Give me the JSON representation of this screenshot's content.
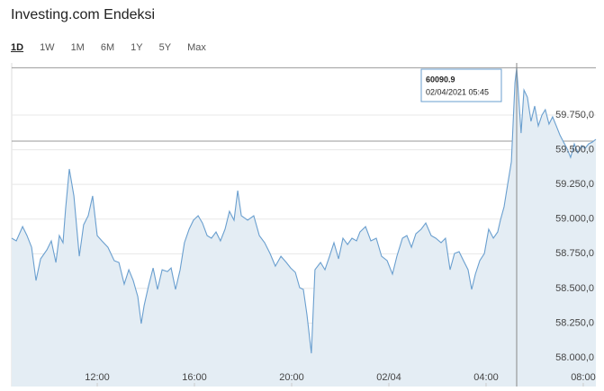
{
  "header": {
    "title": "Investing.com Endeksi",
    "ranges": [
      "1D",
      "1W",
      "1M",
      "6M",
      "1Y",
      "5Y",
      "Max"
    ],
    "active_range": 0
  },
  "chart_data": {
    "type": "area",
    "color": "#6a9fcf",
    "fill": "#e4edf4",
    "x": [
      8.48,
      8.67,
      8.93,
      9.11,
      9.3,
      9.48,
      9.67,
      9.93,
      10.11,
      10.3,
      10.44,
      10.59,
      10.7,
      10.85,
      11.04,
      11.26,
      11.44,
      11.63,
      11.81,
      12.0,
      12.19,
      12.44,
      12.7,
      12.89,
      13.11,
      13.3,
      13.48,
      13.67,
      13.81,
      13.93,
      14.11,
      14.3,
      14.48,
      14.67,
      14.89,
      15.04,
      15.22,
      15.41,
      15.59,
      15.78,
      15.96,
      16.15,
      16.33,
      16.52,
      16.7,
      16.89,
      17.07,
      17.26,
      17.44,
      17.63,
      17.78,
      17.93,
      18.19,
      18.44,
      18.67,
      18.89,
      19.11,
      19.33,
      19.56,
      19.78,
      19.96,
      20.15,
      20.33,
      20.48,
      20.63,
      20.81,
      20.96,
      21.19,
      21.37,
      21.56,
      21.74,
      21.93,
      22.11,
      22.3,
      22.48,
      22.67,
      22.81,
      23.04,
      23.26,
      23.48,
      23.7,
      23.93,
      24.15,
      24.33,
      24.56,
      24.74,
      24.93,
      25.11,
      25.33,
      25.52,
      25.74,
      25.93,
      26.15,
      26.33,
      26.52,
      26.7,
      26.89,
      27.07,
      27.26,
      27.41,
      27.56,
      27.74,
      27.93,
      28.11,
      28.3,
      28.48,
      28.59,
      28.74,
      28.89,
      29.04,
      29.11,
      29.19,
      29.26,
      29.37,
      29.44,
      29.56,
      29.7,
      29.85,
      30.0,
      30.15,
      30.3,
      30.44,
      30.59,
      30.74,
      30.89,
      31.04,
      31.19,
      31.33,
      31.48,
      31.63,
      31.78,
      31.93,
      32.07,
      32.22,
      32.37,
      32.52
    ],
    "values": [
      58862,
      58843,
      58946,
      58881,
      58797,
      58557,
      58713,
      58778,
      58843,
      58687,
      58881,
      58830,
      59076,
      59361,
      59167,
      58732,
      58959,
      59024,
      59167,
      58881,
      58843,
      58797,
      58700,
      58687,
      58531,
      58635,
      58557,
      58441,
      58246,
      58376,
      58518,
      58648,
      58493,
      58635,
      58622,
      58648,
      58493,
      58635,
      58830,
      58927,
      58992,
      59024,
      58972,
      58881,
      58862,
      58907,
      58843,
      58927,
      59056,
      58992,
      59205,
      59024,
      58992,
      59024,
      58881,
      58830,
      58752,
      58661,
      58732,
      58687,
      58648,
      58616,
      58506,
      58493,
      58311,
      58032,
      58635,
      58687,
      58635,
      58732,
      58830,
      58713,
      58862,
      58817,
      58862,
      58843,
      58907,
      58946,
      58843,
      58862,
      58732,
      58700,
      58603,
      58732,
      58862,
      58881,
      58797,
      58894,
      58927,
      58972,
      58881,
      58862,
      58830,
      58862,
      58635,
      58752,
      58765,
      58700,
      58635,
      58493,
      58603,
      58700,
      58752,
      58927,
      58862,
      58907,
      58992,
      59089,
      59251,
      59413,
      59672,
      59983,
      60090.9,
      59802,
      59620,
      59931,
      59879,
      59705,
      59815,
      59672,
      59750,
      59789,
      59685,
      59737,
      59672,
      59607,
      59555,
      59510,
      59445,
      59542,
      59478,
      59530,
      59510,
      59542,
      59555,
      59575
    ],
    "xlim": [
      8.48,
      32.52
    ],
    "xticks": [
      {
        "value": 12,
        "label": "12:00"
      },
      {
        "value": 16,
        "label": "16:00"
      },
      {
        "value": 20,
        "label": "20:00"
      },
      {
        "value": 24,
        "label": "02/04"
      },
      {
        "value": 28,
        "label": "04:00"
      },
      {
        "value": 32,
        "label": "08:00"
      }
    ],
    "ylim": [
      57793,
      60126
    ],
    "yticks": [
      {
        "value": 58000,
        "label": "58.000,0"
      },
      {
        "value": 58250,
        "label": "58.250,0"
      },
      {
        "value": 58500,
        "label": "58.500,0"
      },
      {
        "value": 58750,
        "label": "58.750,0"
      },
      {
        "value": 59000,
        "label": "59.000,0"
      },
      {
        "value": 59250,
        "label": "59.250,0"
      },
      {
        "value": 59500,
        "label": "59.500,0"
      },
      {
        "value": 59750,
        "label": "59.750,0"
      }
    ],
    "reference_lines": [
      60091,
      59562
    ],
    "grid": true,
    "tooltip": {
      "value": 60090.9,
      "date": "02/04/2021 05:45"
    },
    "watermark": {
      "brand": "investing",
      "suffix": ".com"
    }
  }
}
